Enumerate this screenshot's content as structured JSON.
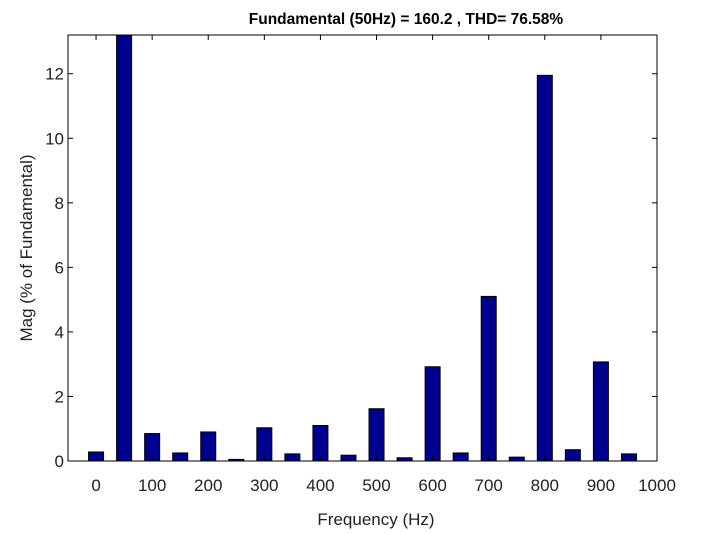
{
  "chart_data": {
    "type": "bar",
    "title": "Fundamental (50Hz) = 160.2 , THD= 76.58%",
    "xlabel": "Frequency (Hz)",
    "ylabel": "Mag (% of Fundamental)",
    "x": [
      0,
      50,
      100,
      150,
      200,
      250,
      300,
      350,
      400,
      450,
      500,
      550,
      600,
      650,
      700,
      750,
      800,
      850,
      900,
      950
    ],
    "values": [
      0.28,
      13.2,
      0.85,
      0.25,
      0.9,
      0.05,
      1.03,
      0.22,
      1.1,
      0.18,
      1.62,
      0.1,
      2.92,
      0.25,
      5.1,
      0.12,
      11.95,
      0.35,
      3.07,
      0.22
    ],
    "xlim": [
      -50,
      1000
    ],
    "ylim": [
      0,
      13.2
    ],
    "xticks": [
      0,
      100,
      200,
      300,
      400,
      500,
      600,
      700,
      800,
      900,
      1000
    ],
    "yticks": [
      0,
      2,
      4,
      6,
      8,
      10,
      12
    ],
    "grid": false,
    "bar_color": "#00008F",
    "edge_color": "#000000"
  }
}
